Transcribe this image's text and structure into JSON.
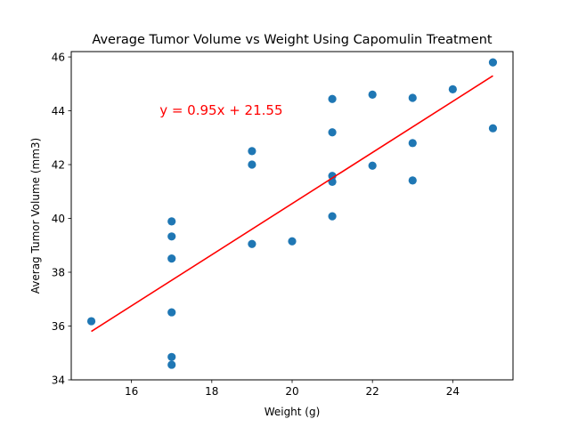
{
  "chart_data": {
    "type": "scatter",
    "title": "Average Tumor Volume vs Weight Using Capomulin Treatment",
    "xlabel": "Weight (g)",
    "ylabel": "Averag Tumor Volume (mm3)",
    "xlim": [
      14.5,
      25.5
    ],
    "ylim": [
      34,
      46.2
    ],
    "xticks": [
      16,
      18,
      20,
      22,
      24
    ],
    "yticks": [
      34,
      36,
      38,
      40,
      42,
      44,
      46
    ],
    "grid": false,
    "legend": "none",
    "marker_color": "#1f77b4",
    "line_color": "#ff0000",
    "points": [
      {
        "x": 15,
        "y": 36.18
      },
      {
        "x": 17,
        "y": 34.56
      },
      {
        "x": 17,
        "y": 34.85
      },
      {
        "x": 17,
        "y": 36.51
      },
      {
        "x": 17,
        "y": 38.51
      },
      {
        "x": 17,
        "y": 39.33
      },
      {
        "x": 17,
        "y": 39.89
      },
      {
        "x": 19,
        "y": 39.05
      },
      {
        "x": 19,
        "y": 42.0
      },
      {
        "x": 19,
        "y": 42.5
      },
      {
        "x": 20,
        "y": 39.15
      },
      {
        "x": 21,
        "y": 40.08
      },
      {
        "x": 21,
        "y": 41.36
      },
      {
        "x": 21,
        "y": 41.58
      },
      {
        "x": 21,
        "y": 43.2
      },
      {
        "x": 21,
        "y": 44.44
      },
      {
        "x": 22,
        "y": 41.96
      },
      {
        "x": 22,
        "y": 44.6
      },
      {
        "x": 23,
        "y": 41.41
      },
      {
        "x": 23,
        "y": 42.8
      },
      {
        "x": 23,
        "y": 44.48
      },
      {
        "x": 24,
        "y": 44.8
      },
      {
        "x": 25,
        "y": 43.35
      },
      {
        "x": 25,
        "y": 45.8
      }
    ],
    "regression": {
      "slope": 0.95,
      "intercept": 21.55,
      "x_start": 15,
      "x_end": 25,
      "equation_label": "y = 0.95x + 21.55",
      "label_position_data": {
        "x": 16.7,
        "y": 43.85
      }
    }
  }
}
